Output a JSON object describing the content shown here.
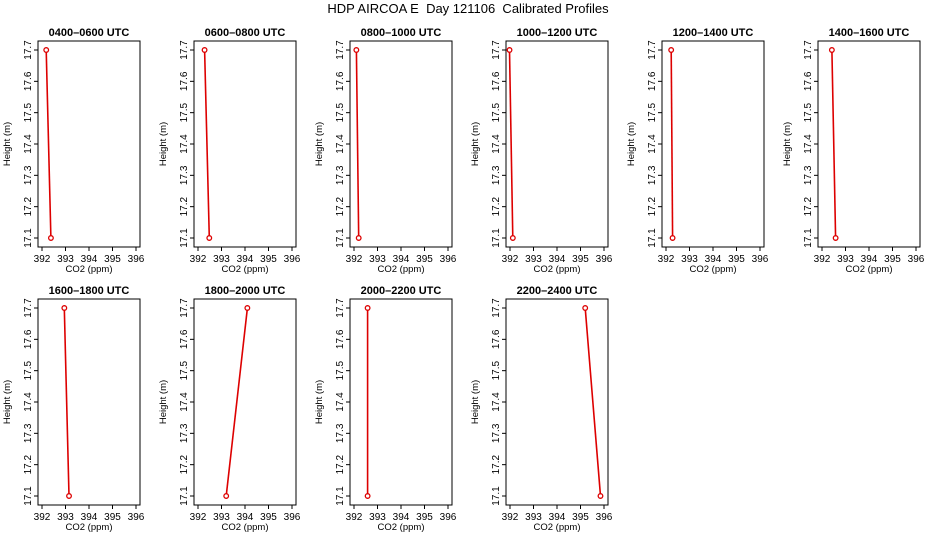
{
  "title": "HDP AIRCOA E  Day 121106  Calibrated Profiles",
  "colors": {
    "series": "#dd0000",
    "axis": "#000000",
    "background": "#ffffff"
  },
  "chart_data": [
    {
      "type": "line",
      "title": "0400–0600 UTC",
      "xlabel": "CO2 (ppm)",
      "ylabel": "Height (m)",
      "xlim": [
        392,
        396
      ],
      "ylim": [
        17.1,
        17.7
      ],
      "xticks": [
        392,
        393,
        394,
        395,
        396
      ],
      "yticks": [
        17.1,
        17.2,
        17.3,
        17.4,
        17.5,
        17.6,
        17.7
      ],
      "points": [
        {
          "x": 392.18,
          "y": 17.7
        },
        {
          "x": 392.38,
          "y": 17.1
        }
      ]
    },
    {
      "type": "line",
      "title": "0600–0800 UTC",
      "xlabel": "CO2 (ppm)",
      "ylabel": "Height (m)",
      "xlim": [
        392,
        396
      ],
      "ylim": [
        17.1,
        17.7
      ],
      "xticks": [
        392,
        393,
        394,
        395,
        396
      ],
      "yticks": [
        17.1,
        17.2,
        17.3,
        17.4,
        17.5,
        17.6,
        17.7
      ],
      "points": [
        {
          "x": 392.28,
          "y": 17.7
        },
        {
          "x": 392.48,
          "y": 17.1
        }
      ]
    },
    {
      "type": "line",
      "title": "0800–1000 UTC",
      "xlabel": "CO2 (ppm)",
      "ylabel": "Height (m)",
      "xlim": [
        392,
        396
      ],
      "ylim": [
        17.1,
        17.7
      ],
      "xticks": [
        392,
        393,
        394,
        395,
        396
      ],
      "yticks": [
        17.1,
        17.2,
        17.3,
        17.4,
        17.5,
        17.6,
        17.7
      ],
      "points": [
        {
          "x": 392.1,
          "y": 17.7
        },
        {
          "x": 392.2,
          "y": 17.1
        }
      ]
    },
    {
      "type": "line",
      "title": "1000–1200 UTC",
      "xlabel": "CO2 (ppm)",
      "ylabel": "Height (m)",
      "xlim": [
        392,
        396
      ],
      "ylim": [
        17.1,
        17.7
      ],
      "xticks": [
        392,
        393,
        394,
        395,
        396
      ],
      "yticks": [
        17.1,
        17.2,
        17.3,
        17.4,
        17.5,
        17.6,
        17.7
      ],
      "points": [
        {
          "x": 391.98,
          "y": 17.7
        },
        {
          "x": 392.12,
          "y": 17.1
        }
      ]
    },
    {
      "type": "line",
      "title": "1200–1400 UTC",
      "xlabel": "CO2 (ppm)",
      "ylabel": "Height (m)",
      "xlim": [
        392,
        396
      ],
      "ylim": [
        17.1,
        17.7
      ],
      "xticks": [
        392,
        393,
        394,
        395,
        396
      ],
      "yticks": [
        17.1,
        17.2,
        17.3,
        17.4,
        17.5,
        17.6,
        17.7
      ],
      "points": [
        {
          "x": 392.22,
          "y": 17.7
        },
        {
          "x": 392.28,
          "y": 17.1
        }
      ]
    },
    {
      "type": "line",
      "title": "1400–1600 UTC",
      "xlabel": "CO2 (ppm)",
      "ylabel": "Height (m)",
      "xlim": [
        392,
        396
      ],
      "ylim": [
        17.1,
        17.7
      ],
      "xticks": [
        392,
        393,
        394,
        395,
        396
      ],
      "yticks": [
        17.1,
        17.2,
        17.3,
        17.4,
        17.5,
        17.6,
        17.7
      ],
      "points": [
        {
          "x": 392.42,
          "y": 17.7
        },
        {
          "x": 392.58,
          "y": 17.1
        }
      ]
    },
    {
      "type": "line",
      "title": "1600–1800 UTC",
      "xlabel": "CO2 (ppm)",
      "ylabel": "Height (m)",
      "xlim": [
        392,
        396
      ],
      "ylim": [
        17.1,
        17.7
      ],
      "xticks": [
        392,
        393,
        394,
        395,
        396
      ],
      "yticks": [
        17.1,
        17.2,
        17.3,
        17.4,
        17.5,
        17.6,
        17.7
      ],
      "points": [
        {
          "x": 392.95,
          "y": 17.7
        },
        {
          "x": 393.15,
          "y": 17.1
        }
      ]
    },
    {
      "type": "line",
      "title": "1800–2000 UTC",
      "xlabel": "CO2 (ppm)",
      "ylabel": "Height (m)",
      "xlim": [
        392,
        396
      ],
      "ylim": [
        17.1,
        17.7
      ],
      "xticks": [
        392,
        393,
        394,
        395,
        396
      ],
      "yticks": [
        17.1,
        17.2,
        17.3,
        17.4,
        17.5,
        17.6,
        17.7
      ],
      "points": [
        {
          "x": 394.1,
          "y": 17.7
        },
        {
          "x": 393.2,
          "y": 17.1
        }
      ]
    },
    {
      "type": "line",
      "title": "2000–2200 UTC",
      "xlabel": "CO2 (ppm)",
      "ylabel": "Height (m)",
      "xlim": [
        392,
        396
      ],
      "ylim": [
        17.1,
        17.7
      ],
      "xticks": [
        392,
        393,
        394,
        395,
        396
      ],
      "yticks": [
        17.1,
        17.2,
        17.3,
        17.4,
        17.5,
        17.6,
        17.7
      ],
      "points": [
        {
          "x": 392.58,
          "y": 17.7
        },
        {
          "x": 392.58,
          "y": 17.1
        }
      ]
    },
    {
      "type": "line",
      "title": "2200–2400 UTC",
      "xlabel": "CO2 (ppm)",
      "ylabel": "Height (m)",
      "xlim": [
        392,
        396
      ],
      "ylim": [
        17.1,
        17.7
      ],
      "xticks": [
        392,
        393,
        394,
        395,
        396
      ],
      "yticks": [
        17.1,
        17.2,
        17.3,
        17.4,
        17.5,
        17.6,
        17.7
      ],
      "points": [
        {
          "x": 395.2,
          "y": 17.7
        },
        {
          "x": 395.85,
          "y": 17.1
        }
      ]
    }
  ]
}
